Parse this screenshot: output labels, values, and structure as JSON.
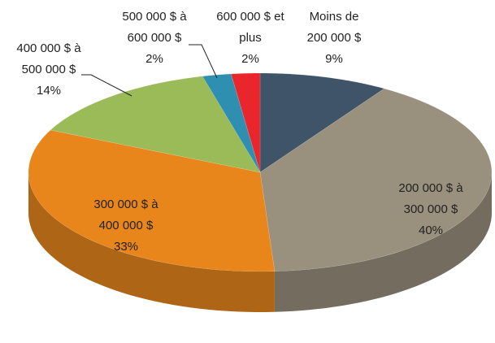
{
  "chart_data": {
    "type": "pie",
    "categories": [
      "Moins de 200 000 $",
      "200 000 $ à 300 000 $",
      "300 000 $ à 400 000 $",
      "400 000 $ à 500 000 $",
      "500 000 $ à 600 000 $",
      "600 000 $ et plus"
    ],
    "values": [
      9,
      40,
      33,
      14,
      2,
      2
    ],
    "value_labels": [
      "9%",
      "40%",
      "33%",
      "14%",
      "2%",
      "2%"
    ],
    "colors": [
      "#3f5468",
      "#9a907e",
      "#e8861c",
      "#9bbb59",
      "#2e8fb0",
      "#e8262c"
    ]
  }
}
